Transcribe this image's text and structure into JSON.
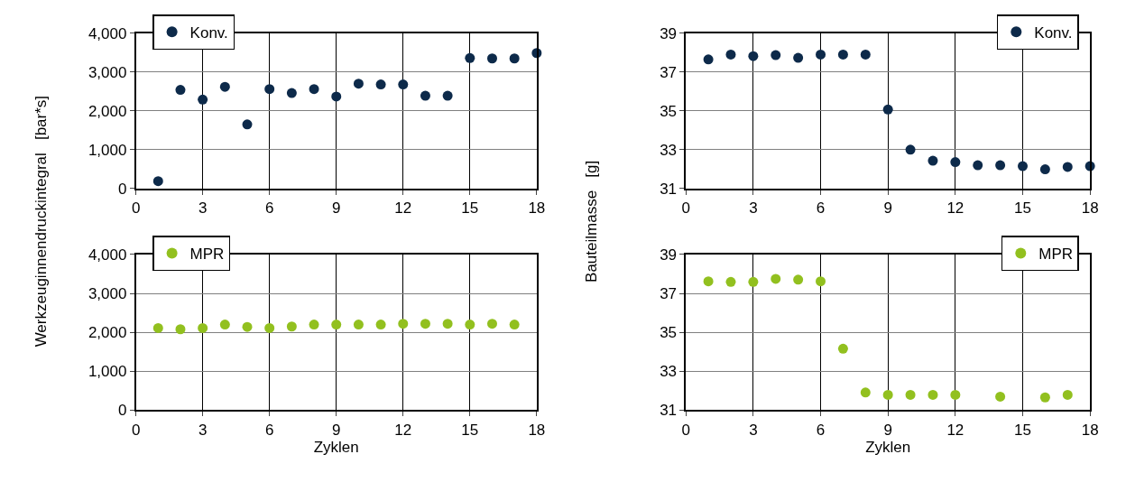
{
  "chart_data": [
    {
      "type": "scatter",
      "ylabel": "Werkzeuginnendruckintegral   [bar*s]",
      "x": [
        1,
        2,
        3,
        4,
        5,
        6,
        7,
        8,
        9,
        10,
        11,
        12,
        13,
        14,
        15,
        16,
        17,
        18
      ],
      "series": [
        {
          "name": "Konv.",
          "color": "#0d2a4a",
          "values": [
            190,
            2540,
            2290,
            2620,
            1650,
            2560,
            2460,
            2560,
            2370,
            2700,
            2680,
            2680,
            2390,
            2390,
            3360,
            3350,
            3350,
            3490
          ]
        }
      ],
      "xlim": [
        0,
        18
      ],
      "xticks": [
        0,
        3,
        6,
        9,
        12,
        15,
        18
      ],
      "ylim": [
        0,
        4000
      ],
      "yticks": [
        0,
        {
          "value": 1000,
          "label": "1,000"
        },
        {
          "value": 2000,
          "label": "2,000"
        },
        {
          "value": 3000,
          "label": "3,000"
        },
        {
          "value": 4000,
          "label": "4,000"
        }
      ],
      "grid": true,
      "legend": "top left",
      "marker": "circle"
    },
    {
      "type": "scatter",
      "ylabel": "Bauteilmasse   [g]",
      "x": [
        1,
        2,
        3,
        4,
        5,
        6,
        7,
        8,
        9,
        10,
        11,
        12,
        13,
        14,
        15,
        16,
        17,
        18
      ],
      "series": [
        {
          "name": "Konv.",
          "color": "#0d2a4a",
          "values": [
            37.65,
            37.9,
            37.82,
            37.87,
            37.73,
            37.9,
            37.9,
            37.9,
            35.07,
            33.0,
            32.43,
            32.36,
            32.2,
            32.2,
            32.15,
            31.99,
            32.11,
            32.15
          ]
        }
      ],
      "xlim": [
        0,
        18
      ],
      "xticks": [
        0,
        3,
        6,
        9,
        12,
        15,
        18
      ],
      "ylim": [
        31,
        39
      ],
      "yticks": [
        31,
        33,
        35,
        37,
        39
      ],
      "grid": true,
      "legend": "top right",
      "marker": "circle"
    },
    {
      "type": "scatter",
      "xlabel": "Zyklen",
      "x": [
        1,
        2,
        3,
        4,
        5,
        6,
        7,
        8,
        9,
        10,
        11,
        12,
        13,
        14,
        15,
        16,
        17
      ],
      "series": [
        {
          "name": "MPR",
          "color": "#92c01f",
          "values": [
            2110,
            2080,
            2110,
            2200,
            2140,
            2110,
            2150,
            2200,
            2200,
            2200,
            2200,
            2220,
            2220,
            2220,
            2200,
            2220,
            2200
          ]
        }
      ],
      "xlim": [
        0,
        18
      ],
      "xticks": [
        0,
        3,
        6,
        9,
        12,
        15,
        18
      ],
      "ylim": [
        0,
        4000
      ],
      "yticks": [
        0,
        {
          "value": 1000,
          "label": "1,000"
        },
        {
          "value": 2000,
          "label": "2,000"
        },
        {
          "value": 3000,
          "label": "3,000"
        },
        {
          "value": 4000,
          "label": "4,000"
        }
      ],
      "grid": true,
      "legend": "top left",
      "marker": "circle"
    },
    {
      "type": "scatter",
      "xlabel": "Zyklen",
      "x": [
        1,
        2,
        3,
        4,
        5,
        6,
        7,
        8,
        9,
        10,
        11,
        12,
        14,
        16,
        17
      ],
      "series": [
        {
          "name": "MPR",
          "color": "#92c01f",
          "values": [
            37.62,
            37.59,
            37.59,
            37.75,
            37.71,
            37.62,
            34.16,
            31.91,
            31.79,
            31.79,
            31.79,
            31.79,
            31.7,
            31.66,
            31.79
          ]
        }
      ],
      "xlim": [
        0,
        18
      ],
      "xticks": [
        0,
        3,
        6,
        9,
        12,
        15,
        18
      ],
      "ylim": [
        31,
        39
      ],
      "yticks": [
        31,
        33,
        35,
        37,
        39
      ],
      "grid": true,
      "legend": "top right",
      "marker": "circle"
    }
  ]
}
